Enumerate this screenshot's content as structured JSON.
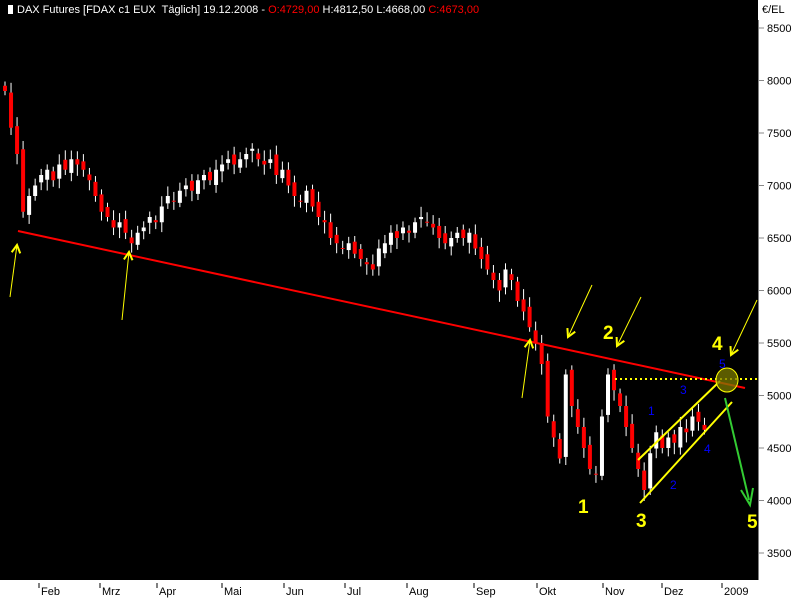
{
  "header": {
    "title": "DAX Futures [FDAX c1 EUX  Täglich] 19.12.2008 - ",
    "open": "O:4729,00",
    "high_low": " H:4812,50 L:4668,00 ",
    "close": "C:4673,00"
  },
  "colors": {
    "background": "#000000",
    "up_candle": "#ffffff",
    "down_candle": "#ff0000",
    "trendline": "#ff0000",
    "wedge": "#ffff00",
    "target_arrow": "#33cc33"
  },
  "chart_data": {
    "type": "candlestick",
    "title": "DAX Futures [FDAX c1 EUX  Täglich]",
    "unit": "€/EL",
    "ylim": [
      3300,
      8700
    ],
    "yticks": [
      8500,
      8000,
      7500,
      7000,
      6500,
      6000,
      5500,
      5000,
      4500,
      4000,
      3500
    ],
    "xticks": [
      "Feb",
      "Mrz",
      "Apr",
      "Mai",
      "Jun",
      "Jul",
      "Aug",
      "Sep",
      "Okt",
      "Nov",
      "Dez",
      "2009"
    ],
    "closes": [
      7900,
      7550,
      7300,
      6750,
      6900,
      7000,
      7100,
      7150,
      7050,
      7200,
      7150,
      7250,
      7200,
      7150,
      7050,
      6900,
      6750,
      6700,
      6600,
      6650,
      6550,
      6450,
      6550,
      6600,
      6700,
      6650,
      6800,
      6900,
      6850,
      6950,
      7000,
      6950,
      7050,
      7100,
      7050,
      7150,
      7200,
      7250,
      7200,
      7250,
      7300,
      7350,
      7250,
      7200,
      7250,
      7100,
      7150,
      7000,
      6900,
      6850,
      6950,
      6800,
      6700,
      6650,
      6500,
      6450,
      6400,
      6450,
      6350,
      6300,
      6250,
      6200,
      6400,
      6450,
      6550,
      6500,
      6600,
      6550,
      6650,
      6700,
      6650,
      6600,
      6500,
      6450,
      6500,
      6550,
      6500,
      6550,
      6400,
      6300,
      6200,
      6100,
      6000,
      6200,
      6100,
      5900,
      5800,
      5650,
      5500,
      5300,
      4800,
      4600,
      4400,
      5200,
      4900,
      4700,
      4500,
      4300,
      4250,
      4800,
      5200,
      5050,
      4900,
      4700,
      4500,
      4300,
      4100,
      4450,
      4650,
      4500,
      4600,
      4550,
      4700,
      4650,
      4800,
      4750,
      4673
    ],
    "resistance_level": 5150,
    "wave_labels_major": [
      "1",
      "2",
      "3",
      "4",
      "5"
    ],
    "wave_labels_minor": [
      "1",
      "2",
      "3",
      "4",
      "5"
    ]
  }
}
